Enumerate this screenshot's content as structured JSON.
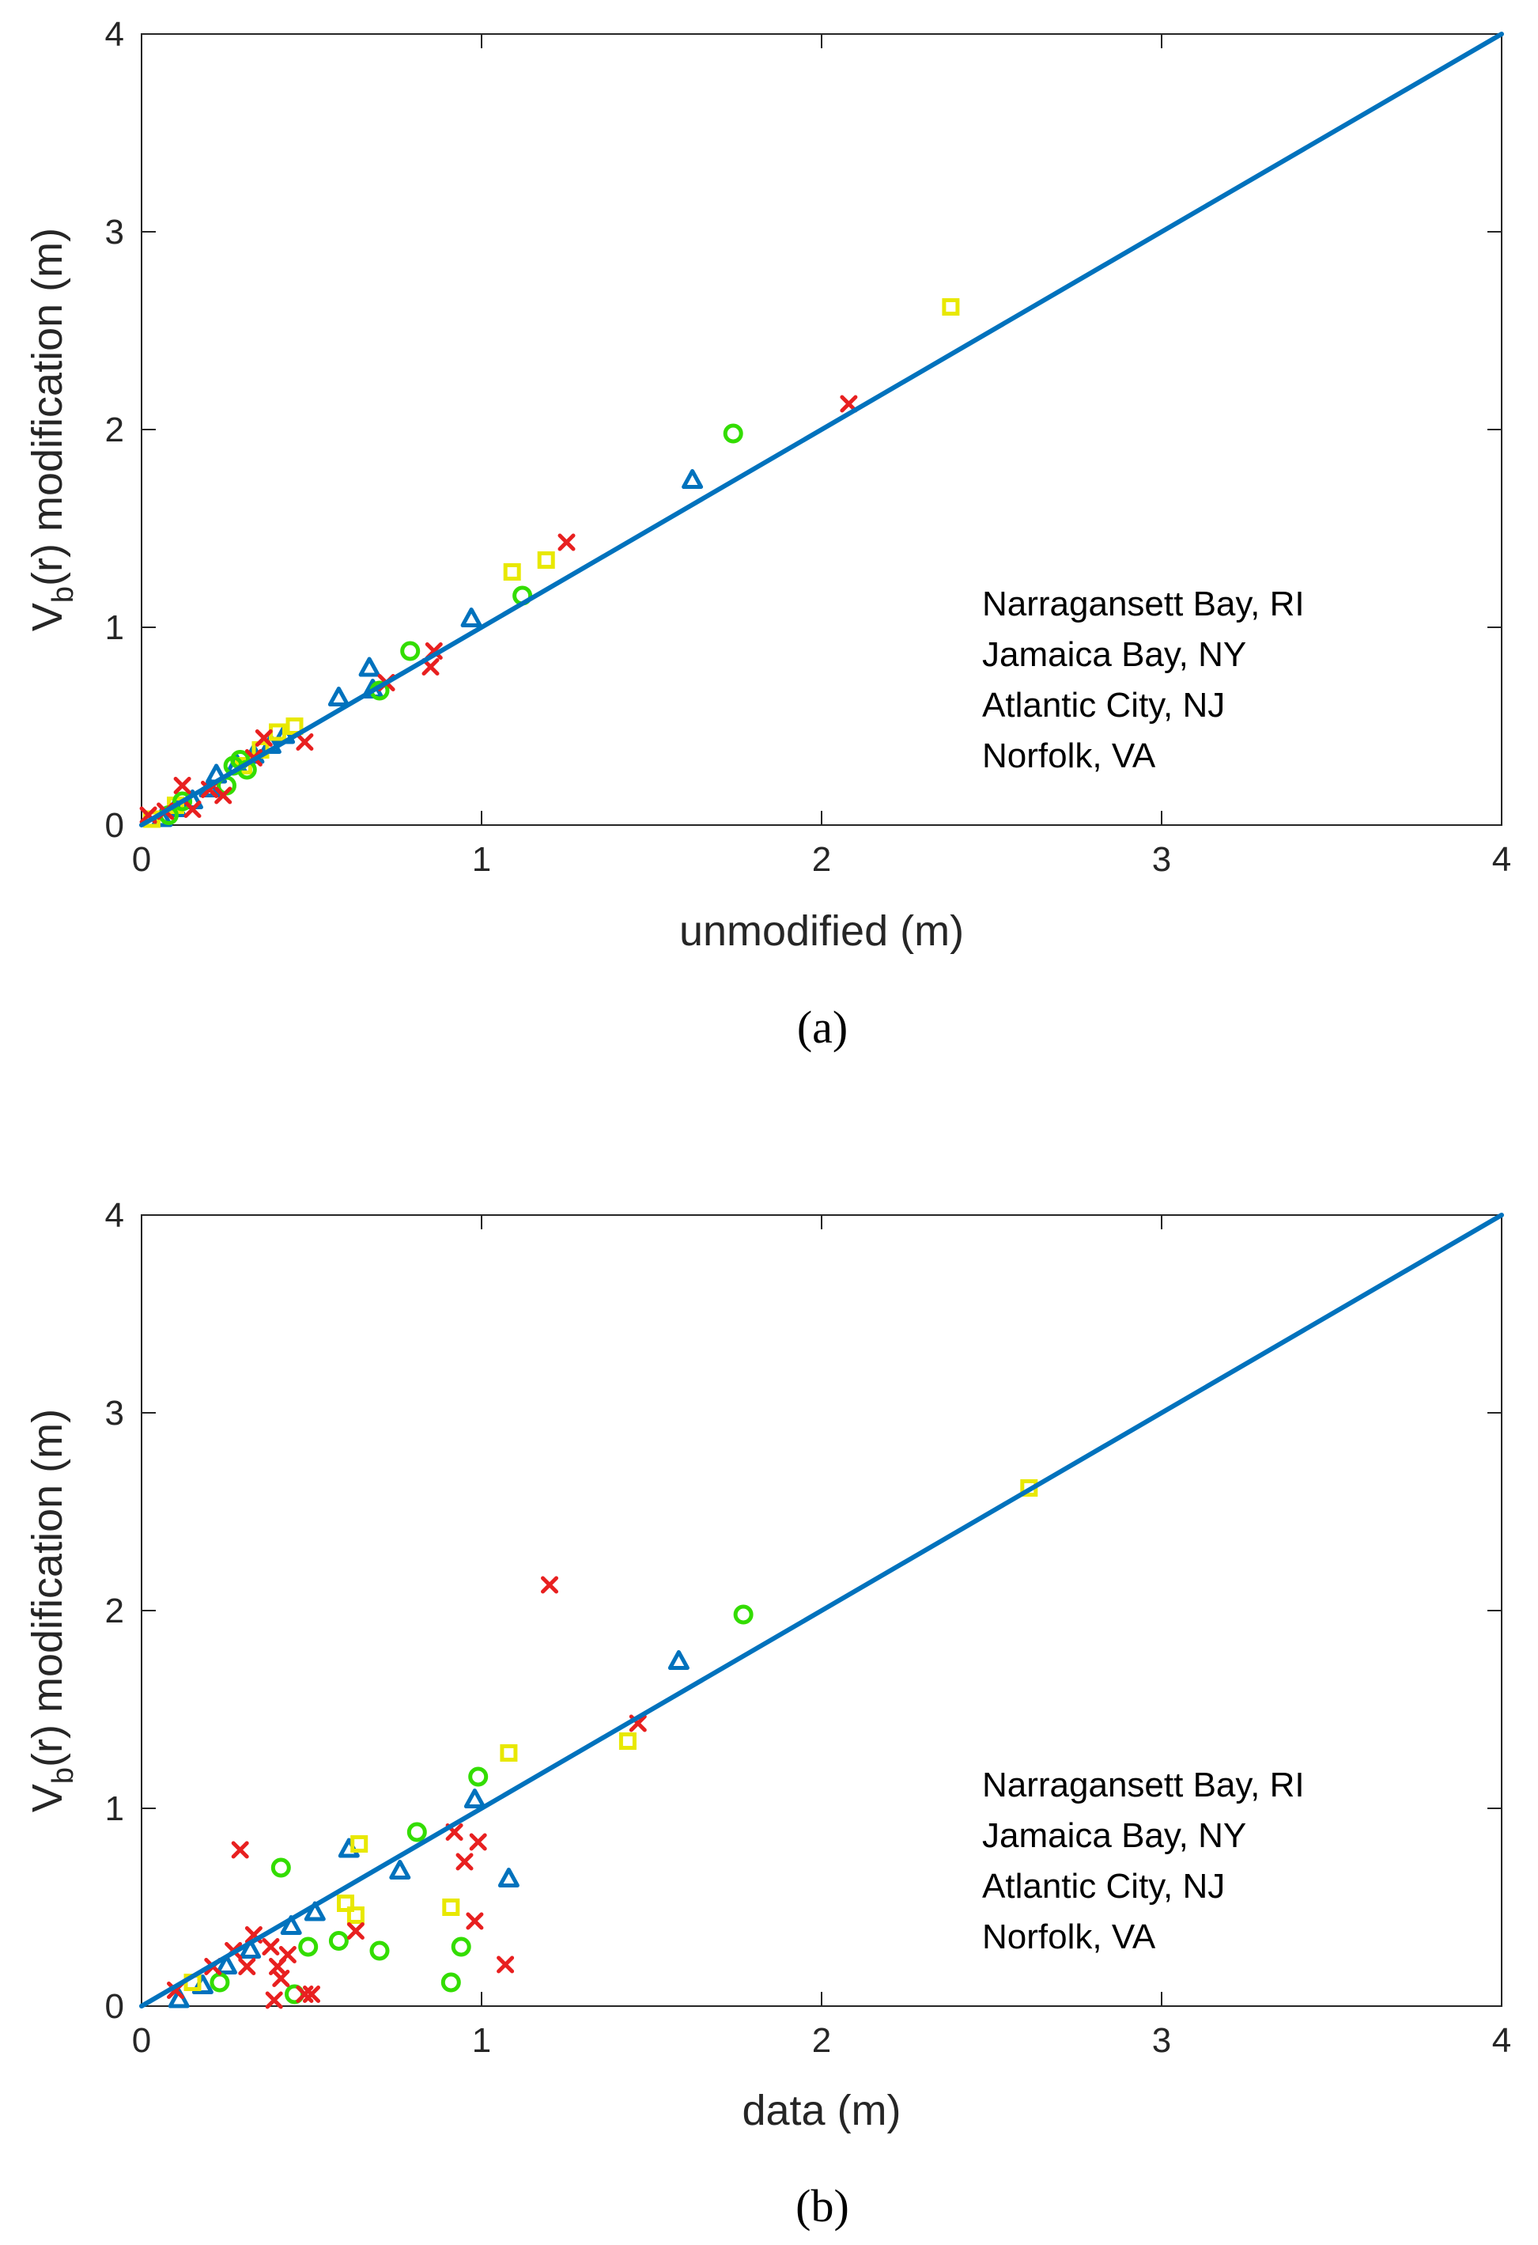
{
  "chart_data": [
    {
      "type": "scatter",
      "panel_label": "(a)",
      "xlabel": "unmodified (m)",
      "ylabel_main": "V",
      "ylabel_sub": "b",
      "ylabel_rest": "(r) modification (m)",
      "xlim": [
        0,
        4
      ],
      "ylim": [
        0,
        4
      ],
      "xticks": [
        "0",
        "1",
        "2",
        "3",
        "4"
      ],
      "yticks": [
        "0",
        "1",
        "2",
        "3",
        "4"
      ],
      "grid": false,
      "legend_position": "lower-right",
      "reference_line": {
        "x": [
          0,
          4
        ],
        "y": [
          0,
          4
        ],
        "color": "#0072BD"
      },
      "series": [
        {
          "name": "Narragansett Bay, RI",
          "marker": "triangle",
          "color": "#0072BD",
          "points": [
            [
              0.06,
              0.03
            ],
            [
              0.1,
              0.08
            ],
            [
              0.15,
              0.12
            ],
            [
              0.2,
              0.18
            ],
            [
              0.22,
              0.25
            ],
            [
              0.28,
              0.3
            ],
            [
              0.33,
              0.35
            ],
            [
              0.38,
              0.4
            ],
            [
              0.42,
              0.45
            ],
            [
              0.58,
              0.64
            ],
            [
              0.67,
              0.79
            ],
            [
              0.68,
              0.68
            ],
            [
              0.97,
              1.04
            ],
            [
              1.62,
              1.74
            ]
          ]
        },
        {
          "name": "Jamaica Bay, NY",
          "marker": "square",
          "color": "#E8E800",
          "points": [
            [
              0.03,
              0.03
            ],
            [
              0.1,
              0.1
            ],
            [
              0.3,
              0.3
            ],
            [
              0.35,
              0.38
            ],
            [
              0.4,
              0.47
            ],
            [
              0.45,
              0.5
            ],
            [
              1.09,
              1.28
            ],
            [
              1.19,
              1.34
            ],
            [
              2.38,
              2.62
            ]
          ]
        },
        {
          "name": "Atlantic City, NJ",
          "marker": "circle",
          "color": "#33DD00",
          "points": [
            [
              0.08,
              0.05
            ],
            [
              0.12,
              0.12
            ],
            [
              0.25,
              0.2
            ],
            [
              0.27,
              0.3
            ],
            [
              0.29,
              0.33
            ],
            [
              0.31,
              0.28
            ],
            [
              0.7,
              0.68
            ],
            [
              0.79,
              0.88
            ],
            [
              1.12,
              1.16
            ],
            [
              1.74,
              1.98
            ]
          ]
        },
        {
          "name": "Norfolk, VA",
          "marker": "x",
          "color": "#E82020",
          "points": [
            [
              0.02,
              0.05
            ],
            [
              0.07,
              0.07
            ],
            [
              0.12,
              0.2
            ],
            [
              0.15,
              0.08
            ],
            [
              0.2,
              0.18
            ],
            [
              0.24,
              0.15
            ],
            [
              0.33,
              0.34
            ],
            [
              0.36,
              0.44
            ],
            [
              0.48,
              0.42
            ],
            [
              0.72,
              0.72
            ],
            [
              0.85,
              0.8
            ],
            [
              0.86,
              0.88
            ],
            [
              1.25,
              1.43
            ],
            [
              2.08,
              2.13
            ]
          ]
        }
      ]
    },
    {
      "type": "scatter",
      "panel_label": "(b)",
      "xlabel": "data (m)",
      "ylabel_main": "V",
      "ylabel_sub": "b",
      "ylabel_rest": "(r) modification (m)",
      "xlim": [
        0,
        4
      ],
      "ylim": [
        0,
        4
      ],
      "xticks": [
        "0",
        "1",
        "2",
        "3",
        "4"
      ],
      "yticks": [
        "0",
        "1",
        "2",
        "3",
        "4"
      ],
      "grid": false,
      "legend_position": "lower-right",
      "reference_line": {
        "x": [
          0,
          4
        ],
        "y": [
          0,
          4
        ],
        "color": "#0072BD"
      },
      "series": [
        {
          "name": "Narragansett Bay, RI",
          "marker": "triangle",
          "color": "#0072BD",
          "points": [
            [
              0.11,
              0.03
            ],
            [
              0.18,
              0.1
            ],
            [
              0.25,
              0.2
            ],
            [
              0.32,
              0.28
            ],
            [
              0.44,
              0.4
            ],
            [
              0.51,
              0.47
            ],
            [
              0.61,
              0.79
            ],
            [
              0.76,
              0.68
            ],
            [
              0.98,
              1.04
            ],
            [
              1.08,
              0.64
            ],
            [
              1.58,
              1.74
            ]
          ]
        },
        {
          "name": "Jamaica Bay, NY",
          "marker": "square",
          "color": "#E8E800",
          "points": [
            [
              0.15,
              0.12
            ],
            [
              0.6,
              0.52
            ],
            [
              0.63,
              0.46
            ],
            [
              0.64,
              0.82
            ],
            [
              0.91,
              0.5
            ],
            [
              1.08,
              1.28
            ],
            [
              1.43,
              1.34
            ],
            [
              2.61,
              2.62
            ]
          ]
        },
        {
          "name": "Atlantic City, NJ",
          "marker": "circle",
          "color": "#33DD00",
          "points": [
            [
              0.23,
              0.12
            ],
            [
              0.41,
              0.7
            ],
            [
              0.45,
              0.06
            ],
            [
              0.49,
              0.3
            ],
            [
              0.58,
              0.33
            ],
            [
              0.7,
              0.28
            ],
            [
              0.81,
              0.88
            ],
            [
              0.91,
              0.12
            ],
            [
              0.94,
              0.3
            ],
            [
              0.99,
              1.16
            ],
            [
              1.77,
              1.98
            ]
          ]
        },
        {
          "name": "Norfolk, VA",
          "marker": "x",
          "color": "#E82020",
          "points": [
            [
              0.1,
              0.08
            ],
            [
              0.21,
              0.2
            ],
            [
              0.27,
              0.28
            ],
            [
              0.29,
              0.79
            ],
            [
              0.31,
              0.2
            ],
            [
              0.33,
              0.36
            ],
            [
              0.38,
              0.3
            ],
            [
              0.39,
              0.03
            ],
            [
              0.4,
              0.2
            ],
            [
              0.41,
              0.14
            ],
            [
              0.43,
              0.26
            ],
            [
              0.48,
              0.06
            ],
            [
              0.5,
              0.06
            ],
            [
              0.63,
              0.38
            ],
            [
              0.92,
              0.88
            ],
            [
              0.95,
              0.73
            ],
            [
              0.98,
              0.43
            ],
            [
              0.99,
              0.83
            ],
            [
              1.07,
              0.21
            ],
            [
              1.2,
              2.13
            ],
            [
              1.46,
              1.43
            ]
          ]
        }
      ]
    }
  ]
}
